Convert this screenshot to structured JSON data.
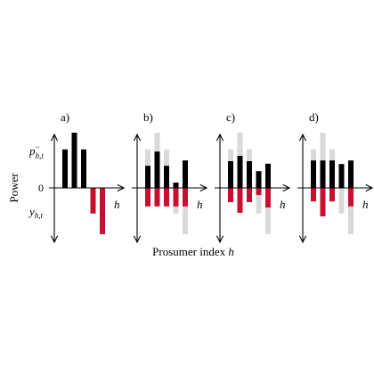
{
  "figure": {
    "ylabel": "Power",
    "xlabel_prefix": "Prosumer index ",
    "xlabel_var": "h"
  },
  "colors": {
    "positive": "#000000",
    "negative": "#c8102e",
    "ghost": "#d9d9d9"
  },
  "chart_data": [
    {
      "type": "bar",
      "panel_label": "a)",
      "axis_var": "h",
      "zero_label": "0",
      "p_label": {
        "main": "p",
        "sub": "h,t",
        "sup": "−"
      },
      "y_label": {
        "main": "y",
        "sub": "h,t"
      },
      "ylim": [
        -1.6,
        1.6
      ],
      "ghost_pos": [
        0,
        0,
        0,
        0,
        0
      ],
      "ghost_neg": [
        0,
        0,
        0,
        0,
        0
      ],
      "pos": [
        1.08,
        1.55,
        1.08,
        0,
        0
      ],
      "neg": [
        0,
        0,
        0,
        -0.72,
        -1.3
      ]
    },
    {
      "type": "bar",
      "panel_label": "b)",
      "axis_var": "h",
      "ylim": [
        -1.6,
        1.6
      ],
      "ghost_pos": [
        1.08,
        1.55,
        1.08,
        0,
        0
      ],
      "ghost_neg": [
        0,
        0,
        0,
        -0.72,
        -1.3
      ],
      "pos": [
        0.62,
        1.02,
        0.62,
        0.15,
        0.77
      ],
      "neg": [
        -0.52,
        -0.52,
        -0.52,
        -0.52,
        -0.52
      ]
    },
    {
      "type": "bar",
      "panel_label": "c)",
      "axis_var": "h",
      "ylim": [
        -1.6,
        1.6
      ],
      "ghost_pos": [
        1.08,
        1.55,
        1.08,
        0,
        0
      ],
      "ghost_neg": [
        0,
        0,
        0,
        -0.72,
        -1.3
      ],
      "pos": [
        0.75,
        0.9,
        0.75,
        0.47,
        0.68
      ],
      "neg": [
        -0.4,
        -0.7,
        -0.4,
        -0.2,
        -0.55
      ]
    },
    {
      "type": "bar",
      "panel_label": "d)",
      "axis_var": "h",
      "ylim": [
        -1.6,
        1.6
      ],
      "ghost_pos": [
        1.08,
        1.55,
        1.08,
        0,
        0
      ],
      "ghost_neg": [
        0,
        0,
        0,
        -0.72,
        -1.3
      ],
      "pos": [
        0.77,
        0.77,
        0.77,
        0.67,
        0.77
      ],
      "neg": [
        -0.38,
        -0.8,
        -0.38,
        0,
        -0.52
      ]
    }
  ]
}
